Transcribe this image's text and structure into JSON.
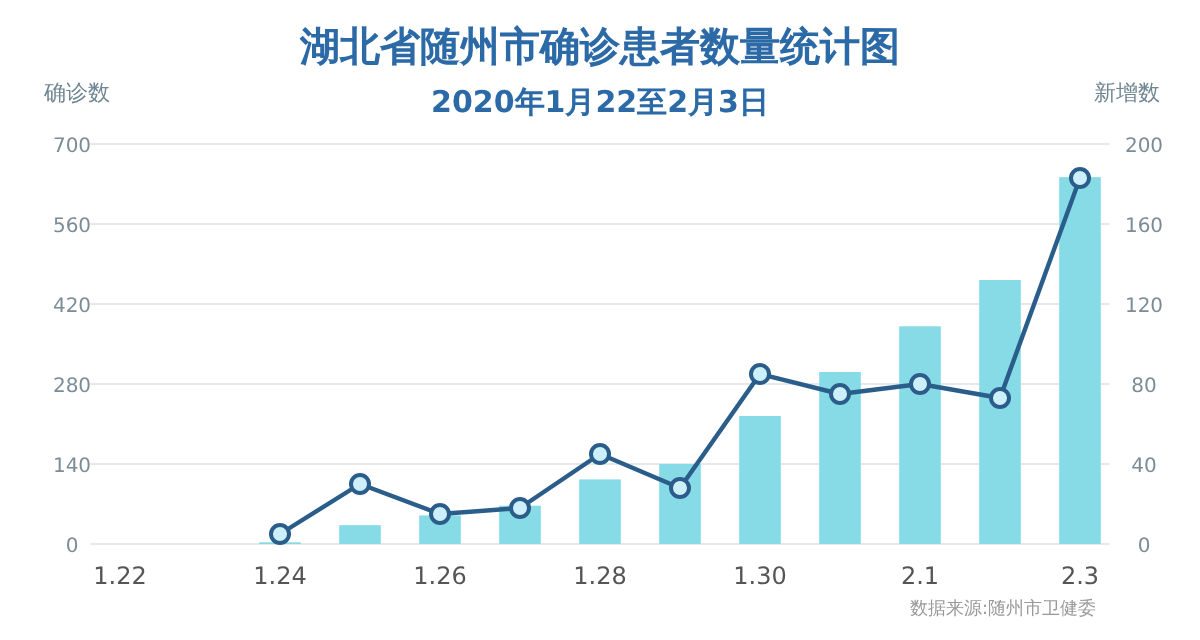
{
  "chart_data": {
    "type": "bar",
    "title": "湖北省随州市确诊患者数量统计图",
    "subtitle": "2020年1月22至2月3日",
    "ylabel": "确诊数",
    "y2label": "新增数",
    "categories": [
      "1.22",
      null,
      "1.24",
      null,
      "1.26",
      null,
      "1.28",
      null,
      "1.30",
      null,
      "2.1",
      null,
      "2.3"
    ],
    "series": [
      {
        "color": "#86dbe6",
        "values": [
          null,
          null,
          3,
          33,
          50,
          67,
          113,
          140,
          224,
          301,
          381,
          462,
          642
        ]
      },
      {
        "type": "line",
        "axis": "y2",
        "color": "#2a5d8a",
        "marker": "circle",
        "values": [
          null,
          null,
          5,
          30,
          15,
          18,
          45,
          28,
          85,
          75,
          80,
          73,
          183
        ]
      }
    ],
    "ylim": [
      0,
      700
    ],
    "yticks": [
      0,
      140,
      280,
      420,
      560,
      700
    ],
    "y2lim": [
      0,
      200
    ],
    "y2ticks": [
      0,
      40,
      80,
      120,
      160,
      200
    ],
    "grid": "y",
    "annotations": [
      "数据来源:随州市卫健委"
    ]
  }
}
